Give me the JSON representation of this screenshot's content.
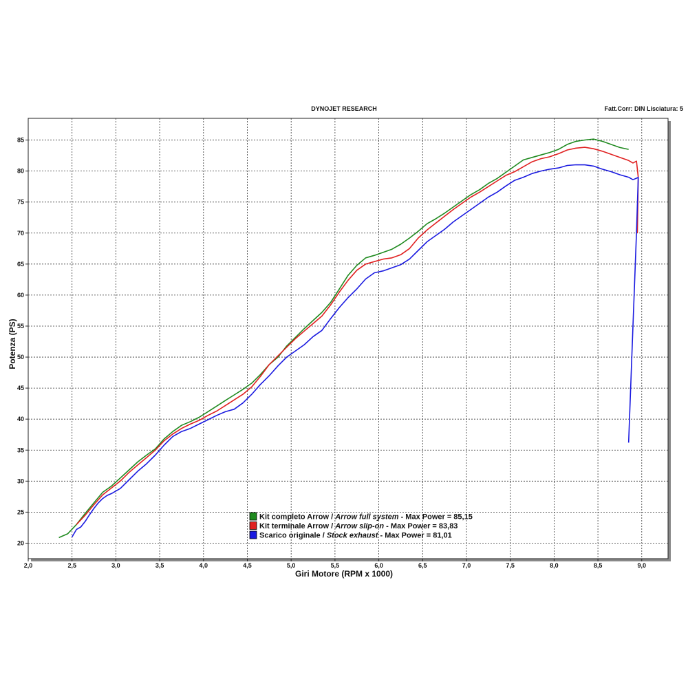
{
  "header": {
    "center": "DYNOJET RESEARCH",
    "right": "Fatt.Corr: DIN  Lisciatura: 5"
  },
  "chart_data": {
    "type": "line",
    "xlabel": "Giri Motore (RPM x 1000)",
    "ylabel": "Potenza (PS)",
    "xlim": [
      2.0,
      9.3
    ],
    "ylim": [
      17.5,
      88.5
    ],
    "xticks": [
      2.0,
      2.5,
      3.0,
      3.5,
      4.0,
      4.5,
      5.0,
      5.5,
      6.0,
      6.5,
      7.0,
      7.5,
      8.0,
      8.5,
      9.0
    ],
    "xtick_labels": [
      "2,0",
      "2,5",
      "3,0",
      "3,5",
      "4,0",
      "4,5",
      "5,0",
      "5,5",
      "6,0",
      "6,5",
      "7,0",
      "7,5",
      "8,0",
      "8,5",
      "9,0"
    ],
    "yticks": [
      20,
      25,
      30,
      35,
      40,
      45,
      50,
      55,
      60,
      65,
      70,
      75,
      80,
      85
    ],
    "grid": true,
    "legend_position": "bottom-center",
    "series": [
      {
        "name": "Kit completo Arrow / Arrow full system - Max Power = 85,15",
        "name_parts": [
          "Kit completo Arrow / ",
          "Arrow full system",
          " - Max Power = 85,15"
        ],
        "color": "#1f8a1f",
        "x": [
          2.35,
          2.45,
          2.55,
          2.65,
          2.75,
          2.85,
          2.95,
          3.05,
          3.15,
          3.25,
          3.35,
          3.45,
          3.55,
          3.65,
          3.75,
          3.85,
          3.95,
          4.05,
          4.15,
          4.25,
          4.35,
          4.45,
          4.55,
          4.65,
          4.75,
          4.85,
          4.95,
          5.05,
          5.15,
          5.25,
          5.35,
          5.45,
          5.55,
          5.65,
          5.75,
          5.85,
          5.95,
          6.05,
          6.15,
          6.25,
          6.35,
          6.45,
          6.55,
          6.65,
          6.75,
          6.85,
          6.95,
          7.05,
          7.15,
          7.25,
          7.35,
          7.45,
          7.55,
          7.65,
          7.75,
          7.85,
          7.95,
          8.05,
          8.15,
          8.25,
          8.35,
          8.45,
          8.55,
          8.65,
          8.75,
          8.85
        ],
        "y": [
          20.9,
          21.5,
          23.0,
          24.8,
          26.5,
          28.2,
          29.2,
          30.5,
          31.8,
          33.1,
          34.2,
          35.2,
          36.8,
          38.0,
          39.0,
          39.6,
          40.3,
          41.2,
          42.1,
          43.0,
          43.9,
          44.8,
          45.8,
          47.2,
          48.8,
          50.0,
          51.8,
          53.2,
          54.6,
          55.9,
          57.2,
          58.8,
          61.0,
          63.2,
          64.8,
          66.0,
          66.4,
          66.9,
          67.4,
          68.2,
          69.2,
          70.3,
          71.5,
          72.3,
          73.2,
          74.2,
          75.2,
          76.2,
          77.0,
          78.0,
          78.8,
          79.8,
          80.8,
          81.8,
          82.2,
          82.6,
          83.0,
          83.5,
          84.3,
          84.8,
          85.0,
          85.15,
          84.8,
          84.3,
          83.8,
          83.5
        ]
      },
      {
        "name": "Kit terminale Arrow / Arrow slip-on - Max Power = 83,83",
        "name_parts": [
          "Kit terminale Arrow / ",
          "Arrow slip-on",
          " - Max Power = 83,83"
        ],
        "color": "#e02020",
        "x": [
          2.55,
          2.65,
          2.75,
          2.85,
          2.95,
          3.05,
          3.15,
          3.25,
          3.35,
          3.45,
          3.55,
          3.65,
          3.75,
          3.85,
          3.95,
          4.05,
          4.15,
          4.25,
          4.35,
          4.45,
          4.55,
          4.65,
          4.75,
          4.85,
          4.95,
          5.05,
          5.15,
          5.25,
          5.35,
          5.45,
          5.55,
          5.65,
          5.75,
          5.85,
          5.95,
          6.05,
          6.15,
          6.25,
          6.35,
          6.45,
          6.55,
          6.65,
          6.75,
          6.85,
          6.95,
          7.05,
          7.15,
          7.25,
          7.35,
          7.45,
          7.55,
          7.65,
          7.75,
          7.85,
          7.95,
          8.05,
          8.15,
          8.25,
          8.35,
          8.45,
          8.55,
          8.65,
          8.75,
          8.85,
          8.9,
          8.94,
          8.96,
          8.95
        ],
        "y": [
          23.0,
          24.5,
          26.2,
          27.8,
          28.9,
          30.0,
          31.4,
          32.6,
          33.8,
          35.0,
          36.5,
          37.6,
          38.5,
          39.2,
          39.8,
          40.6,
          41.3,
          42.2,
          43.1,
          44.0,
          45.2,
          46.9,
          48.8,
          50.2,
          51.6,
          53.0,
          54.2,
          55.4,
          56.6,
          58.4,
          60.5,
          62.4,
          64.0,
          65.0,
          65.4,
          65.8,
          66.0,
          66.5,
          67.5,
          69.2,
          70.5,
          71.6,
          72.7,
          73.8,
          74.8,
          75.8,
          76.6,
          77.5,
          78.4,
          79.3,
          79.9,
          80.7,
          81.5,
          82.0,
          82.3,
          82.8,
          83.4,
          83.7,
          83.83,
          83.6,
          83.2,
          82.7,
          82.2,
          81.7,
          81.3,
          81.6,
          79.0,
          70.0
        ]
      },
      {
        "name": "Scarico originale / Stock exhaust - Max Power = 81,01",
        "name_parts": [
          "Scarico originale / ",
          "Stock exhaust",
          " - Max Power = 81,01"
        ],
        "color": "#1a1ae0",
        "x": [
          2.5,
          2.55,
          2.6,
          2.65,
          2.7,
          2.75,
          2.8,
          2.85,
          2.9,
          2.95,
          3.05,
          3.15,
          3.25,
          3.35,
          3.45,
          3.55,
          3.65,
          3.75,
          3.85,
          3.95,
          4.05,
          4.15,
          4.25,
          4.35,
          4.45,
          4.55,
          4.65,
          4.75,
          4.85,
          4.95,
          5.05,
          5.15,
          5.25,
          5.35,
          5.45,
          5.55,
          5.65,
          5.75,
          5.85,
          5.95,
          6.05,
          6.15,
          6.25,
          6.35,
          6.45,
          6.55,
          6.65,
          6.75,
          6.85,
          6.95,
          7.05,
          7.15,
          7.25,
          7.35,
          7.45,
          7.55,
          7.65,
          7.75,
          7.85,
          7.95,
          8.05,
          8.15,
          8.25,
          8.35,
          8.45,
          8.55,
          8.65,
          8.75,
          8.85,
          8.9,
          8.95,
          8.96,
          8.94,
          8.9,
          8.85
        ],
        "y": [
          21.0,
          22.2,
          22.6,
          23.5,
          24.6,
          25.6,
          26.5,
          27.2,
          27.7,
          28.0,
          28.8,
          30.2,
          31.6,
          32.8,
          34.2,
          35.8,
          37.2,
          38.0,
          38.5,
          39.2,
          39.9,
          40.6,
          41.2,
          41.6,
          42.6,
          44.0,
          45.6,
          47.0,
          48.6,
          50.0,
          51.0,
          52.0,
          53.3,
          54.3,
          56.2,
          58.0,
          59.6,
          61.0,
          62.6,
          63.6,
          63.9,
          64.4,
          64.9,
          65.8,
          67.2,
          68.6,
          69.6,
          70.6,
          71.8,
          72.8,
          73.8,
          74.8,
          75.8,
          76.6,
          77.6,
          78.5,
          79.0,
          79.6,
          80.0,
          80.3,
          80.5,
          80.9,
          81.01,
          81.0,
          80.8,
          80.3,
          79.9,
          79.4,
          79.0,
          78.6,
          78.9,
          79.0,
          70.0,
          55.0,
          36.2
        ]
      }
    ]
  }
}
